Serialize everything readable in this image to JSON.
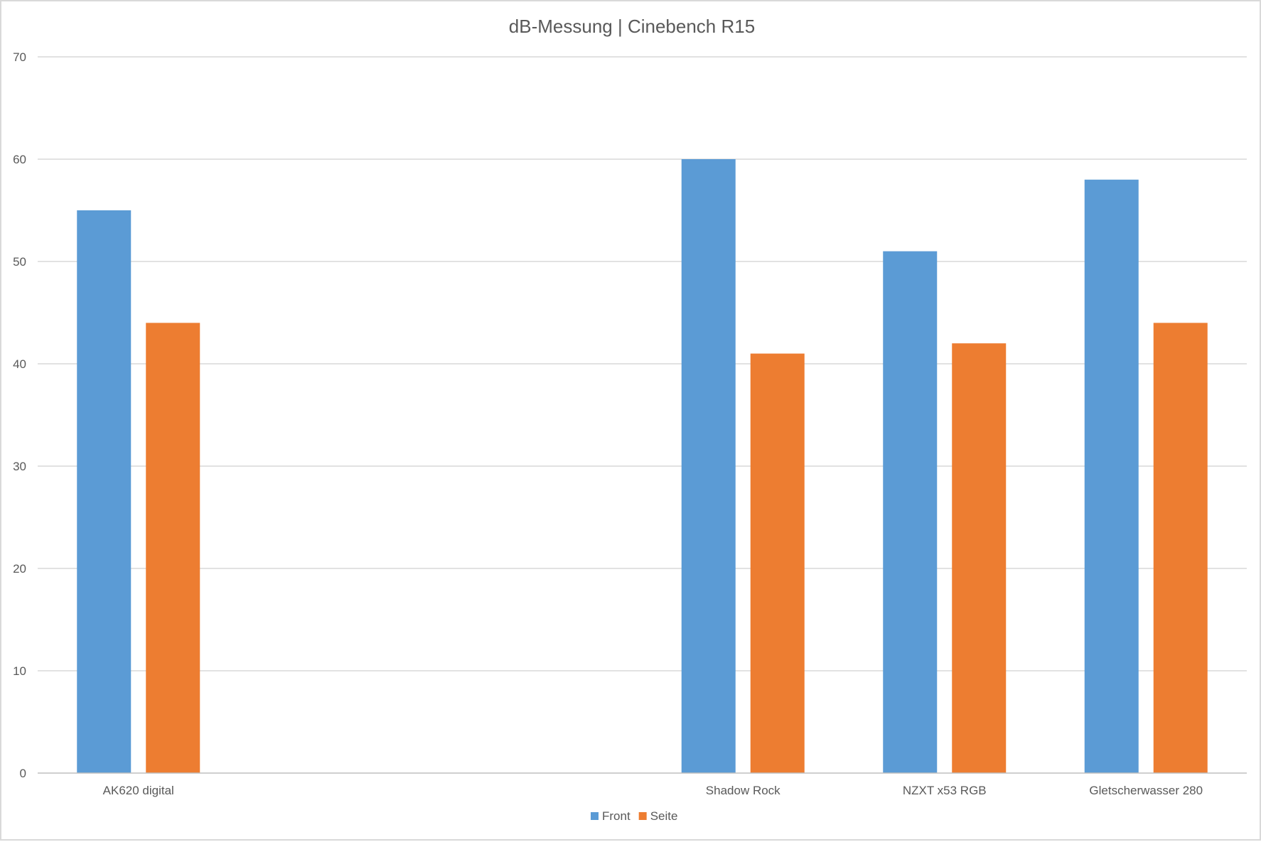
{
  "chart_data": {
    "type": "bar",
    "title": "dB-Messung | Cinebench R15",
    "xlabel": "",
    "ylabel": "",
    "categories": [
      "AK620 digital",
      "",
      "",
      "Shadow Rock",
      "NZXT x53 RGB",
      "Gletscherwasser 280"
    ],
    "series": [
      {
        "name": "Front",
        "color": "#5b9bd5",
        "values": [
          55,
          null,
          null,
          60,
          51,
          58
        ]
      },
      {
        "name": "Seite",
        "color": "#ed7d31",
        "values": [
          44,
          null,
          null,
          41,
          42,
          44
        ]
      }
    ],
    "ylim": [
      0,
      70
    ],
    "yticks": [
      0,
      10,
      20,
      30,
      40,
      50,
      60,
      70
    ],
    "grid": true,
    "legend_position": "bottom"
  }
}
